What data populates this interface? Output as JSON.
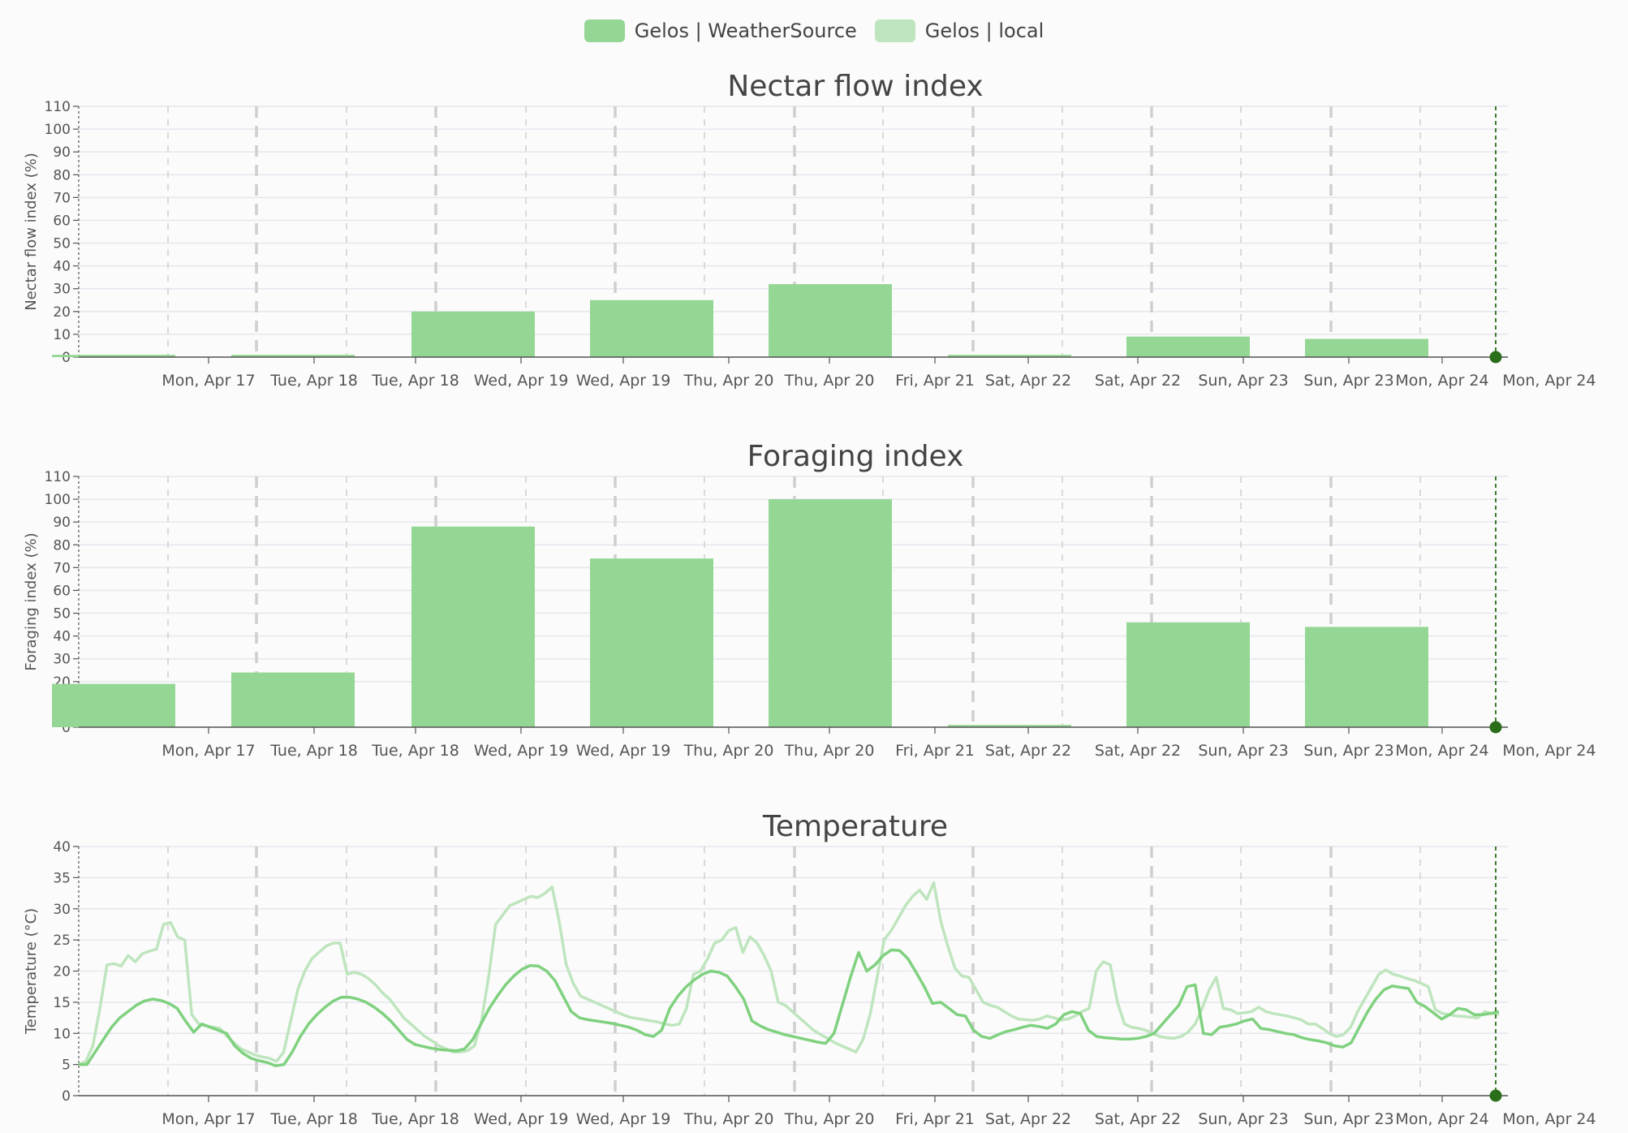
{
  "legend": {
    "items": [
      {
        "label": "Gelos | WeatherSource",
        "color": "#94d794"
      },
      {
        "label": "Gelos | local",
        "color": "#bee5be"
      }
    ]
  },
  "colors": {
    "bar": "#94d794",
    "line_weathersource": "#7fd17f",
    "line_local": "#bee5be",
    "grid": "#e6e6ef",
    "day_line": "#cfcfcf",
    "now_marker": "#2b6e1a"
  },
  "x_tick_labels": [
    "Mon, Apr 17",
    "Tue, Apr 18",
    "Tue, Apr 18",
    "Wed, Apr 19",
    "Wed, Apr 19",
    "Thu, Apr 20",
    "Thu, Apr 20",
    "Fri, Apr 21",
    "Sat, Apr 22",
    "Sat, Apr 22",
    "Sun, Apr 23",
    "Sun, Apr 23",
    "Mon, Apr 24",
    "Mon, Apr 24"
  ],
  "chart_data": [
    {
      "type": "bar",
      "title": "Nectar flow index",
      "ylabel": "Nectar flow index (%)",
      "ylim": [
        0,
        110
      ],
      "yticks": [
        0,
        10,
        20,
        30,
        40,
        50,
        60,
        70,
        80,
        90,
        100,
        110
      ],
      "grid": true,
      "series": [
        {
          "name": "Gelos | WeatherSource",
          "values": [
            1,
            1,
            20,
            25,
            32,
            1,
            9,
            8
          ]
        }
      ]
    },
    {
      "type": "bar",
      "title": "Foraging index",
      "ylabel": "Foraging index (%)",
      "ylim": [
        0,
        110
      ],
      "yticks": [
        0,
        20,
        30,
        40,
        50,
        60,
        70,
        80,
        90,
        100,
        110
      ],
      "grid": true,
      "series": [
        {
          "name": "Gelos | WeatherSource",
          "values": [
            19,
            24,
            88,
            74,
            100,
            1,
            46,
            44
          ]
        }
      ]
    },
    {
      "type": "line",
      "title": "Temperature",
      "ylabel": "Temperature (°C)",
      "ylim": [
        0,
        40
      ],
      "yticks": [
        0,
        5,
        10,
        15,
        20,
        25,
        30,
        35,
        40
      ],
      "grid": true,
      "series": [
        {
          "name": "Gelos | WeatherSource",
          "values": [
            5,
            5,
            7,
            9,
            11,
            12.5,
            13.5,
            14.5,
            15.2,
            15.5,
            15.3,
            14.8,
            14,
            12,
            10.2,
            11.5,
            11,
            10.5,
            10,
            8,
            6.8,
            6,
            5.6,
            5.3,
            4.8,
            5,
            7,
            9.5,
            11.5,
            13,
            14.2,
            15.2,
            15.8,
            15.8,
            15.5,
            15,
            14.2,
            13.2,
            12,
            10.5,
            9,
            8.2,
            7.9,
            7.6,
            7.4,
            7.3,
            7.2,
            7.5,
            9,
            11.5,
            14,
            16,
            17.8,
            19.2,
            20.3,
            20.9,
            20.8,
            20,
            18.5,
            16,
            13.5,
            12.5,
            12.2,
            12,
            11.8,
            11.6,
            11.3,
            11,
            10.5,
            9.8,
            9.5,
            10.5,
            14,
            16,
            17.5,
            18.6,
            19.5,
            20,
            19.8,
            19.2,
            17.5,
            15.5,
            12,
            11.2,
            10.6,
            10.2,
            9.8,
            9.5,
            9.2,
            8.9,
            8.6,
            8.4,
            10,
            14.5,
            19,
            23,
            20,
            21,
            22.5,
            23.4,
            23.3,
            22,
            19.8,
            17.5,
            14.8,
            15,
            14,
            13,
            12.8,
            10.5,
            9.5,
            9.2,
            9.8,
            10.3,
            10.6,
            11,
            11.3,
            11.1,
            10.8,
            11.5,
            13,
            13.5,
            13.2,
            10.5,
            9.5,
            9.3,
            9.2,
            9.1,
            9.1,
            9.2,
            9.5,
            10,
            11.5,
            13,
            14.5,
            17.5,
            17.8,
            10,
            9.8,
            11,
            11.2,
            11.5,
            12,
            12.3,
            10.8,
            10.6,
            10.3,
            10,
            9.8,
            9.3,
            9,
            8.8,
            8.5,
            8,
            7.8,
            8.5,
            11,
            13.5,
            15.5,
            17,
            17.6,
            17.4,
            17.2,
            15,
            14.3,
            13.3,
            12.3,
            13,
            14,
            13.8,
            13,
            13,
            13.2,
            13.5
          ]
        },
        {
          "name": "Gelos | local",
          "values": [
            5,
            5.5,
            8,
            14,
            21,
            21.2,
            20.8,
            22.5,
            21.5,
            22.8,
            23.2,
            23.5,
            27.5,
            27.8,
            25.5,
            25,
            13,
            11.5,
            11.2,
            11,
            10.8,
            9.5,
            8.5,
            7.5,
            7,
            6.5,
            6.2,
            6,
            5.5,
            7,
            12,
            17,
            20,
            22,
            23,
            24,
            24.5,
            24.5,
            19.5,
            19.8,
            19.5,
            18.8,
            17.8,
            16.5,
            15.5,
            14,
            12.5,
            11.5,
            10.5,
            9.5,
            8.8,
            8,
            7.5,
            7,
            7,
            7.2,
            8,
            12,
            19,
            27.5,
            29,
            30.5,
            31,
            31.5,
            32,
            31.8,
            32.5,
            33.5,
            28,
            21,
            18,
            16,
            15.5,
            15,
            14.5,
            14,
            13.5,
            13,
            12.6,
            12.4,
            12.2,
            12,
            11.8,
            11.5,
            11.3,
            11.5,
            14,
            19.5,
            20,
            22,
            24.5,
            25,
            26.5,
            27,
            23,
            25.5,
            24.5,
            22.5,
            20,
            15,
            14.5,
            13.5,
            12.5,
            11.5,
            10.5,
            9.8,
            9.2,
            8.5,
            8,
            7.5,
            7,
            9,
            13,
            19,
            25,
            26.5,
            28.5,
            30.5,
            32,
            33,
            31.5,
            34.2,
            28,
            24,
            20.5,
            19.2,
            19,
            17,
            15,
            14.5,
            14.2,
            13.5,
            12.8,
            12.3,
            12.2,
            12.1,
            12.3,
            12.8,
            12.5,
            12.2,
            12.3,
            12.8,
            13.5,
            14,
            20,
            21.5,
            21,
            15,
            11.5,
            11,
            10.8,
            10.5,
            10,
            9.5,
            9.3,
            9.2,
            9.5,
            10.2,
            11.5,
            14,
            17,
            19,
            14,
            13.8,
            13.2,
            13.3,
            13.5,
            14.2,
            13.5,
            13.2,
            13,
            12.8,
            12.5,
            12.2,
            11.5,
            11.5,
            10.8,
            10,
            9.5,
            9.8,
            11,
            13.5,
            15.5,
            17.5,
            19.5,
            20.2,
            19.5,
            19.2,
            18.8,
            18.5,
            18,
            17.5,
            13.8,
            13.2,
            13,
            12.8,
            12.7,
            12.6,
            12.5,
            13.5,
            13.2,
            13
          ]
        }
      ]
    }
  ]
}
